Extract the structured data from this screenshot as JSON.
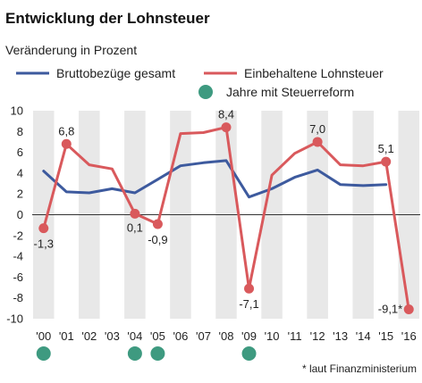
{
  "title": "Entwicklung der Lohnsteuer",
  "subtitle": "Veränderung in Prozent",
  "footnote": "* laut Finanzministerium",
  "colors": {
    "brutto": "#3d5a9e",
    "lohnsteuer": "#d9595c",
    "reform_dot": "#3e9a80",
    "band": "#e8e8e8",
    "zero_line": "#333333"
  },
  "legend": [
    {
      "label": "Bruttobezüge gesamt",
      "series": "brutto",
      "marker": "line"
    },
    {
      "label": "Einbehaltene Lohnsteuer",
      "series": "lohnsteuer",
      "marker": "line"
    },
    {
      "label": "Jahre mit Steuerreform",
      "series": "reform",
      "marker": "dot"
    }
  ],
  "chart_data": {
    "type": "line",
    "categories": [
      "'00",
      "'01",
      "'02",
      "'03",
      "'04",
      "'05",
      "'06",
      "'07",
      "'08",
      "'09",
      "'10",
      "'11",
      "'12",
      "'13",
      "'14",
      "'15",
      "'16"
    ],
    "ylim": [
      -10,
      10
    ],
    "yticks": [
      10,
      8,
      6,
      4,
      2,
      0,
      -2,
      -4,
      -6,
      -8,
      -10
    ],
    "grid": false,
    "alternating_bands": true,
    "series": [
      {
        "name": "Bruttobezüge gesamt",
        "key": "brutto",
        "values": [
          4.2,
          2.2,
          2.1,
          2.5,
          2.1,
          3.4,
          4.7,
          5.0,
          5.2,
          1.7,
          2.5,
          3.6,
          4.3,
          2.9,
          2.8,
          2.9,
          null
        ],
        "markers": false
      },
      {
        "name": "Einbehaltene Lohnsteuer",
        "key": "lohnsteuer",
        "values": [
          -1.3,
          6.8,
          4.8,
          4.4,
          0.1,
          -0.9,
          7.8,
          7.9,
          8.4,
          -7.1,
          3.8,
          5.9,
          7.0,
          4.8,
          4.7,
          5.1,
          -9.1
        ],
        "markers": [
          true,
          true,
          false,
          false,
          true,
          true,
          false,
          false,
          true,
          true,
          false,
          false,
          true,
          false,
          false,
          true,
          true
        ]
      }
    ],
    "data_labels": [
      {
        "index": 0,
        "text": "-1,3"
      },
      {
        "index": 1,
        "text": "6,8"
      },
      {
        "index": 4,
        "text": "0,1"
      },
      {
        "index": 5,
        "text": "-0,9"
      },
      {
        "index": 8,
        "text": "8,4"
      },
      {
        "index": 9,
        "text": "-7,1"
      },
      {
        "index": 12,
        "text": "7,0"
      },
      {
        "index": 15,
        "text": "5,1"
      },
      {
        "index": 16,
        "text": "-9,1*"
      }
    ],
    "reform_years": [
      0,
      4,
      5,
      9
    ]
  }
}
